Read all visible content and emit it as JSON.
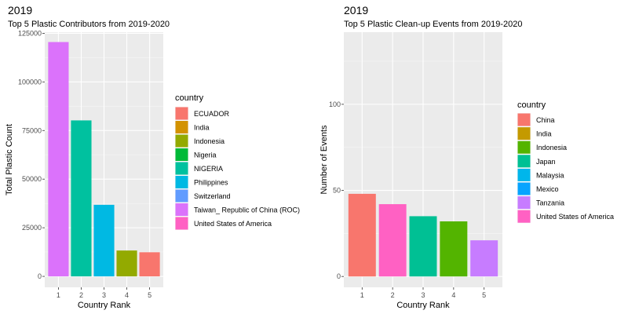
{
  "chart_data": [
    {
      "type": "bar",
      "title": "2019",
      "subtitle": "Top 5 Plastic Contributors from 2019-2020",
      "xlabel": "Country Rank",
      "ylabel": "Total Plastic Count",
      "ylim": [
        0,
        125000
      ],
      "y_ticks": [
        "0",
        "25000",
        "50000",
        "75000",
        "100000",
        "125000"
      ],
      "y_tick_values": [
        0,
        25000,
        50000,
        75000,
        100000,
        125000
      ],
      "categories": [
        "1",
        "2",
        "3",
        "4",
        "5"
      ],
      "values": [
        120500,
        80200,
        36800,
        13300,
        12400
      ],
      "bar_countries": [
        "Taiwan_ Republic of China (ROC)",
        "NIGERIA",
        "Philippines",
        "Indonesia",
        "ECUADOR"
      ],
      "grid": true,
      "legend_position": "right",
      "legend": {
        "title": "country",
        "entries": [
          {
            "label": "ECUADOR",
            "color": "#F8766D"
          },
          {
            "label": "India",
            "color": "#D39200"
          },
          {
            "label": "Indonesia",
            "color": "#93AA00"
          },
          {
            "label": "Nigeria",
            "color": "#00BA38"
          },
          {
            "label": "NIGERIA",
            "color": "#00C19F"
          },
          {
            "label": "Philippines",
            "color": "#00B9E3"
          },
          {
            "label": "Switzerland",
            "color": "#619CFF"
          },
          {
            "label": "Taiwan_ Republic of China (ROC)",
            "color": "#DB72FB"
          },
          {
            "label": "United States of America",
            "color": "#FF61C3"
          }
        ]
      }
    },
    {
      "type": "bar",
      "title": "2019",
      "subtitle": "Top 5 Plastic Clean-up Events from 2019-2020",
      "xlabel": "Country Rank",
      "ylabel": "Number of Events",
      "ylim": [
        0,
        140
      ],
      "y_ticks": [
        "0",
        "50",
        "100"
      ],
      "y_tick_values": [
        0,
        50,
        100
      ],
      "categories": [
        "1",
        "2",
        "3",
        "4",
        "5"
      ],
      "values": [
        48,
        42,
        35,
        32,
        21
      ],
      "bar_countries": [
        "China",
        "United States of America",
        "Japan",
        "Indonesia",
        "Tanzania"
      ],
      "grid": true,
      "legend_position": "right",
      "legend": {
        "title": "country",
        "entries": [
          {
            "label": "China",
            "color": "#F8766D"
          },
          {
            "label": "India",
            "color": "#C49A00"
          },
          {
            "label": "Indonesia",
            "color": "#53B400"
          },
          {
            "label": "Japan",
            "color": "#00C094"
          },
          {
            "label": "Malaysia",
            "color": "#00B6EB"
          },
          {
            "label": "Mexico",
            "color": "#06A4FF"
          },
          {
            "label": "Tanzania",
            "color": "#C77CFF"
          },
          {
            "label": "United States of America",
            "color": "#FF61C3"
          }
        ]
      }
    }
  ]
}
